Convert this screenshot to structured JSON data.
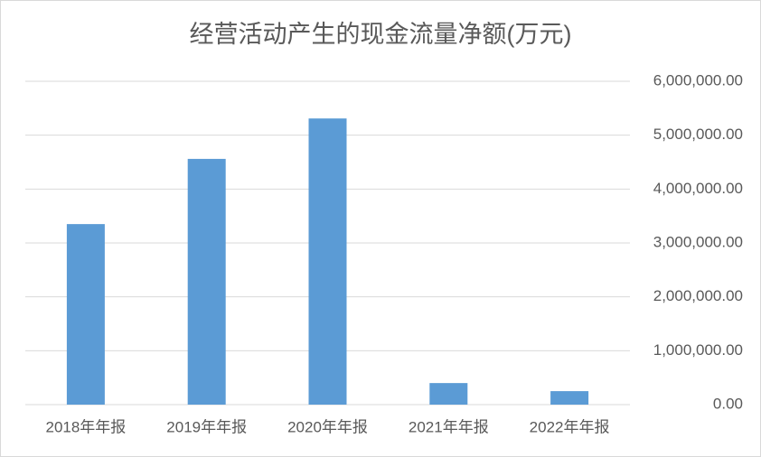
{
  "chart_data": {
    "type": "bar",
    "title": "经营活动产生的现金流量净额(万元)",
    "categories": [
      "2018年年报",
      "2019年年报",
      "2020年年报",
      "2021年年报",
      "2022年年报"
    ],
    "values": [
      3350000,
      4560000,
      5310000,
      400000,
      250000
    ],
    "color": "#5b9bd5",
    "ylim": [
      0,
      6000000
    ],
    "yticks": [
      {
        "value": 0,
        "label": "0.00"
      },
      {
        "value": 1000000,
        "label": "1,000,000.00"
      },
      {
        "value": 2000000,
        "label": "2,000,000.00"
      },
      {
        "value": 3000000,
        "label": "3,000,000.00"
      },
      {
        "value": 4000000,
        "label": "4,000,000.00"
      },
      {
        "value": 5000000,
        "label": "5,000,000.00"
      },
      {
        "value": 6000000,
        "label": "6,000,000.00"
      }
    ],
    "grid": true
  }
}
